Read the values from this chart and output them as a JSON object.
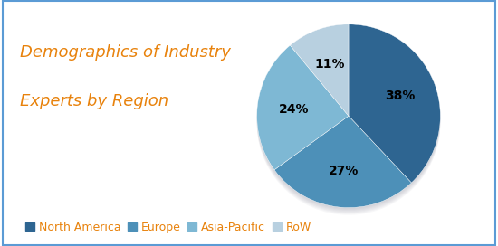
{
  "title_line1": "Demographics of Industry",
  "title_line2": "Experts by Region",
  "title_color": "#E8820C",
  "title_fontsize": 13,
  "slices": [
    38,
    27,
    24,
    11
  ],
  "labels": [
    "North America",
    "Europe",
    "Asia-Pacific",
    "RoW"
  ],
  "pct_labels": [
    "38%",
    "27%",
    "24%",
    "11%"
  ],
  "colors": [
    "#2E6591",
    "#4D90B8",
    "#7EB8D4",
    "#B8D0E0"
  ],
  "shadow_color": "#888899",
  "background_color": "#FFFFFF",
  "legend_color": "#E8820C",
  "legend_fontsize": 9,
  "startangle": 90
}
